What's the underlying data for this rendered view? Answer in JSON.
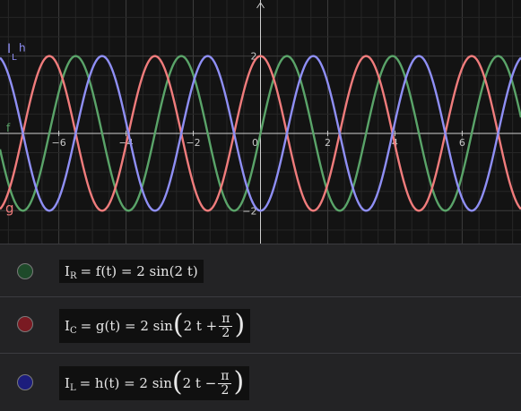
{
  "chart_data": {
    "type": "line",
    "xlim": [
      -7.75,
      7.75
    ],
    "ylim": [
      -2.85,
      3.45
    ],
    "x_ticks": [
      -6,
      -4,
      -2,
      0,
      2,
      4,
      6
    ],
    "x_tick_labels": [
      "−6",
      "−4",
      "−2",
      "0",
      "2",
      "4",
      "6"
    ],
    "y_ticks": [
      -2,
      2
    ],
    "y_tick_labels": [
      "−2",
      "2"
    ],
    "grid": true,
    "series": [
      {
        "name": "f",
        "function": "2*sin(2*t)",
        "color": "#5aa469"
      },
      {
        "name": "g",
        "function": "2*sin(2*t + pi/2)",
        "color": "#f07c7c"
      },
      {
        "name": "h",
        "function": "2*sin(2*t - pi/2)",
        "color": "#8f8ff5"
      }
    ],
    "labels": {
      "f": "f",
      "g": "g",
      "h_main": "I",
      "h_sub": "L",
      "h_suffix": "h"
    }
  },
  "algebra": [
    {
      "dot_color": "#1e4a2a",
      "I": "I",
      "sub": "R",
      "eq": "= f(t) = 2 sin(2 t)"
    },
    {
      "dot_color": "#7a1a22",
      "I": "I",
      "sub": "C",
      "lhs": "= g(t) = 2 sin",
      "inner": "2 t +",
      "num": "π",
      "den": "2"
    },
    {
      "dot_color": "#1c1d7c",
      "I": "I",
      "sub": "L",
      "lhs": "= h(t) = 2 sin",
      "inner": "2 t −",
      "num": "π",
      "den": "2"
    }
  ]
}
